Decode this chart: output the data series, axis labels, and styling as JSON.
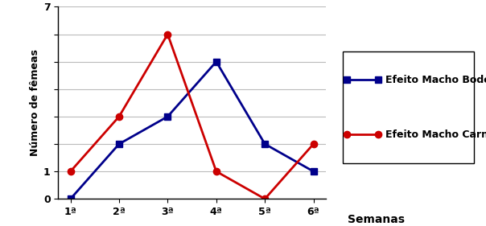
{
  "x_labels": [
    "1ª",
    "2ª",
    "3ª",
    "4ª",
    "5ª",
    "6ª"
  ],
  "bode_values": [
    0,
    2,
    3,
    5,
    2,
    1
  ],
  "carneiro_values": [
    1,
    3,
    6,
    1,
    0,
    2
  ],
  "bode_color": "#00008B",
  "carneiro_color": "#CC0000",
  "bode_label": "Efeito Macho Bode",
  "carneiro_label": "Efeito Macho Carneiro",
  "xlabel": "Semanas",
  "ylabel": "Número de fêmeas",
  "ylim": [
    0,
    7
  ],
  "yticks": [
    0,
    1,
    7
  ],
  "ytick_labels": [
    "0",
    "1",
    "7"
  ],
  "grid_yticks": [
    0,
    1,
    2,
    3,
    4,
    5,
    6,
    7
  ],
  "bg_color": "#ffffff",
  "grid_color": "#bbbbbb",
  "legend_fontsize": 9,
  "axis_fontsize": 9,
  "ylabel_fontsize": 9
}
